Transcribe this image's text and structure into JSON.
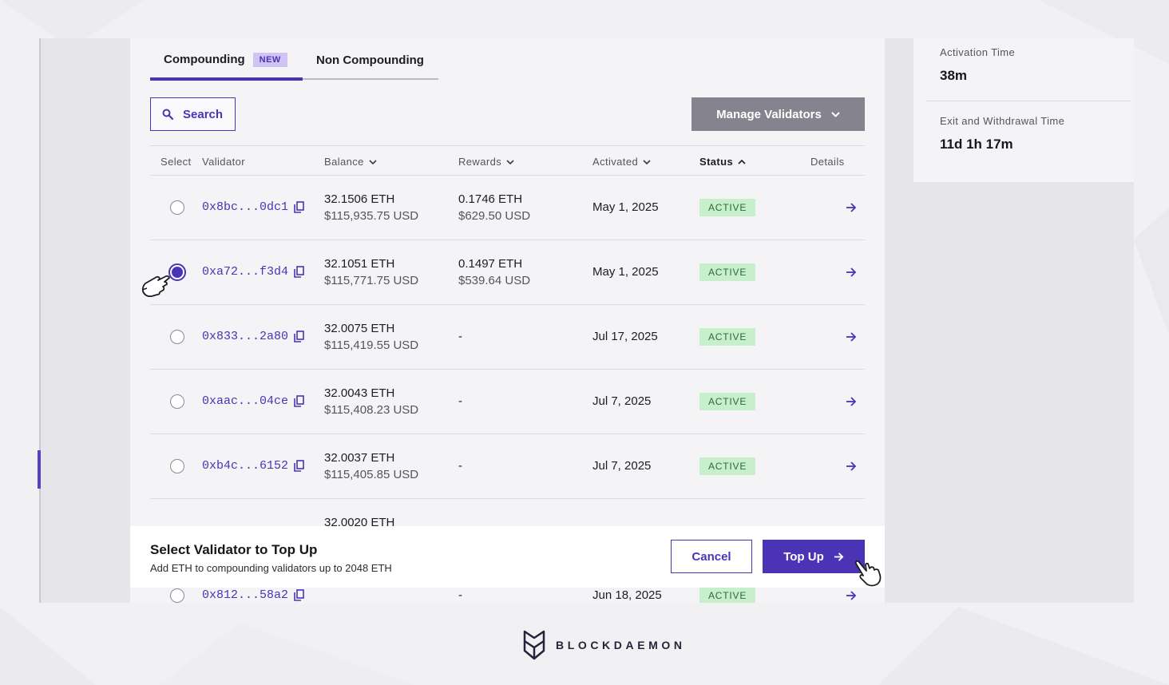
{
  "tabs": [
    {
      "label": "Compounding",
      "badge": "NEW",
      "active": true
    },
    {
      "label": "Non Compounding",
      "active": false
    }
  ],
  "toolbar": {
    "search_label": "Search",
    "manage_label": "Manage Validators"
  },
  "table": {
    "headers": {
      "select": "Select",
      "validator": "Validator",
      "balance": "Balance",
      "rewards": "Rewards",
      "activated": "Activated",
      "status": "Status",
      "details": "Details"
    },
    "rows": [
      {
        "address": "0x8bc...0dc1",
        "balance_eth": "32.1506 ETH",
        "balance_usd": "$115,935.75 USD",
        "rewards_eth": "0.1746 ETH",
        "rewards_usd": "$629.50 USD",
        "activated": "May 1, 2025",
        "status": "ACTIVE",
        "selected": false
      },
      {
        "address": "0xa72...f3d4",
        "balance_eth": "32.1051 ETH",
        "balance_usd": "$115,771.75 USD",
        "rewards_eth": "0.1497 ETH",
        "rewards_usd": "$539.64 USD",
        "activated": "May 1, 2025",
        "status": "ACTIVE",
        "selected": true
      },
      {
        "address": "0x833...2a80",
        "balance_eth": "32.0075 ETH",
        "balance_usd": "$115,419.55 USD",
        "rewards_eth": "-",
        "rewards_usd": "",
        "activated": "Jul 17, 2025",
        "status": "ACTIVE",
        "selected": false
      },
      {
        "address": "0xaac...04ce",
        "balance_eth": "32.0043 ETH",
        "balance_usd": "$115,408.23 USD",
        "rewards_eth": "-",
        "rewards_usd": "",
        "activated": "Jul 7, 2025",
        "status": "ACTIVE",
        "selected": false
      },
      {
        "address": "0xb4c...6152",
        "balance_eth": "32.0037 ETH",
        "balance_usd": "$115,405.85 USD",
        "rewards_eth": "-",
        "rewards_usd": "",
        "activated": "Jul 7, 2025",
        "status": "ACTIVE",
        "selected": false
      },
      {
        "address": "",
        "balance_eth": "32.0020 ETH",
        "balance_usd": "",
        "rewards_eth": "",
        "rewards_usd": "",
        "activated": "",
        "status": "",
        "selected": false
      },
      {
        "address": "0x812...58a2",
        "balance_eth": "",
        "balance_usd": "",
        "rewards_eth": "-",
        "rewards_usd": "",
        "activated": "Jun 18, 2025",
        "status": "ACTIVE",
        "selected": false
      }
    ]
  },
  "side_panel": {
    "activation_label": "Activation Time",
    "activation_value": "38m",
    "exit_label": "Exit and Withdrawal Time",
    "exit_value": "11d 1h 17m"
  },
  "action_bar": {
    "title": "Select Validator to Top Up",
    "subtitle": "Add ETH to compounding validators up to 2048 ETH",
    "cancel_label": "Cancel",
    "topup_label": "Top Up"
  },
  "brand": {
    "name": "BLOCKDAEMON"
  },
  "colors": {
    "accent": "#4a34b5",
    "status_bg": "#c8efcc",
    "status_text": "#2a6b36"
  }
}
